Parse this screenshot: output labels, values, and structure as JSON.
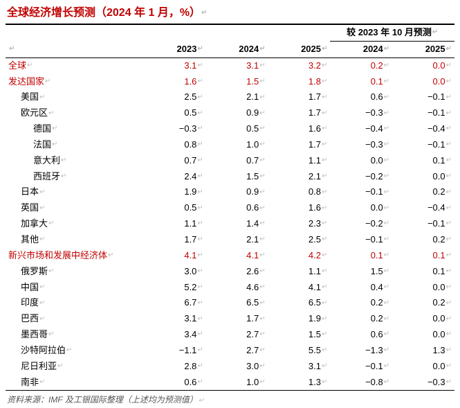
{
  "title": "全球经济增长预测（2024 年 1 月，%）",
  "superHeader": "较 2023 年 10 月预测",
  "headers": [
    "2023",
    "2024",
    "2025",
    "2024",
    "2025"
  ],
  "rows": [
    {
      "label": "全球",
      "indent": 0,
      "red": true,
      "vals": [
        "3.1",
        "3.1",
        "3.2",
        "0.2",
        "0.0"
      ]
    },
    {
      "label": "发达国家",
      "indent": 0,
      "red": true,
      "vals": [
        "1.6",
        "1.5",
        "1.8",
        "0.1",
        "0.0"
      ]
    },
    {
      "label": "美国",
      "indent": 1,
      "red": false,
      "vals": [
        "2.5",
        "2.1",
        "1.7",
        "0.6",
        "−0.1"
      ]
    },
    {
      "label": "欧元区",
      "indent": 1,
      "red": false,
      "vals": [
        "0.5",
        "0.9",
        "1.7",
        "−0.3",
        "−0.1"
      ]
    },
    {
      "label": "德国",
      "indent": 2,
      "red": false,
      "vals": [
        "−0.3",
        "0.5",
        "1.6",
        "−0.4",
        "−0.4"
      ]
    },
    {
      "label": "法国",
      "indent": 2,
      "red": false,
      "vals": [
        "0.8",
        "1.0",
        "1.7",
        "−0.3",
        "−0.1"
      ]
    },
    {
      "label": "意大利",
      "indent": 2,
      "red": false,
      "vals": [
        "0.7",
        "0.7",
        "1.1",
        "0.0",
        "0.1"
      ]
    },
    {
      "label": "西班牙",
      "indent": 2,
      "red": false,
      "vals": [
        "2.4",
        "1.5",
        "2.1",
        "−0.2",
        "0.0"
      ]
    },
    {
      "label": "日本",
      "indent": 1,
      "red": false,
      "vals": [
        "1.9",
        "0.9",
        "0.8",
        "−0.1",
        "0.2"
      ]
    },
    {
      "label": "英国",
      "indent": 1,
      "red": false,
      "vals": [
        "0.5",
        "0.6",
        "1.6",
        "0.0",
        "−0.4"
      ]
    },
    {
      "label": "加拿大",
      "indent": 1,
      "red": false,
      "vals": [
        "1.1",
        "1.4",
        "2.3",
        "−0.2",
        "−0.1"
      ]
    },
    {
      "label": "其他",
      "indent": 1,
      "red": false,
      "vals": [
        "1.7",
        "2.1",
        "2.5",
        "−0.1",
        "0.2"
      ]
    },
    {
      "label": "新兴市场和发展中经济体",
      "indent": 0,
      "red": true,
      "vals": [
        "4.1",
        "4.1",
        "4.2",
        "0.1",
        "0.1"
      ]
    },
    {
      "label": "俄罗斯",
      "indent": 1,
      "red": false,
      "vals": [
        "3.0",
        "2.6",
        "1.1",
        "1.5",
        "0.1"
      ]
    },
    {
      "label": "中国",
      "indent": 1,
      "red": false,
      "vals": [
        "5.2",
        "4.6",
        "4.1",
        "0.4",
        "0.0"
      ]
    },
    {
      "label": "印度",
      "indent": 1,
      "red": false,
      "vals": [
        "6.7",
        "6.5",
        "6.5",
        "0.2",
        "0.2"
      ]
    },
    {
      "label": "巴西",
      "indent": 1,
      "red": false,
      "vals": [
        "3.1",
        "1.7",
        "1.9",
        "0.2",
        "0.0"
      ]
    },
    {
      "label": "墨西哥",
      "indent": 1,
      "red": false,
      "vals": [
        "3.4",
        "2.7",
        "1.5",
        "0.6",
        "0.0"
      ]
    },
    {
      "label": "沙特阿拉伯",
      "indent": 1,
      "red": false,
      "vals": [
        "−1.1",
        "2.7",
        "5.5",
        "−1.3",
        "1.3"
      ]
    },
    {
      "label": "尼日利亚",
      "indent": 1,
      "red": false,
      "vals": [
        "2.8",
        "3.0",
        "3.1",
        "−0.1",
        "0.0"
      ]
    },
    {
      "label": "南非",
      "indent": 1,
      "red": false,
      "vals": [
        "0.6",
        "1.0",
        "1.3",
        "−0.8",
        "−0.3"
      ]
    }
  ],
  "sourceNote": "资料来源：IMF 及工银国际整理（上述均为预测值）",
  "retMark": "↵",
  "colors": {
    "accent": "#c00000",
    "text": "#000000",
    "sourceText": "#555555",
    "background": "#ffffff"
  }
}
